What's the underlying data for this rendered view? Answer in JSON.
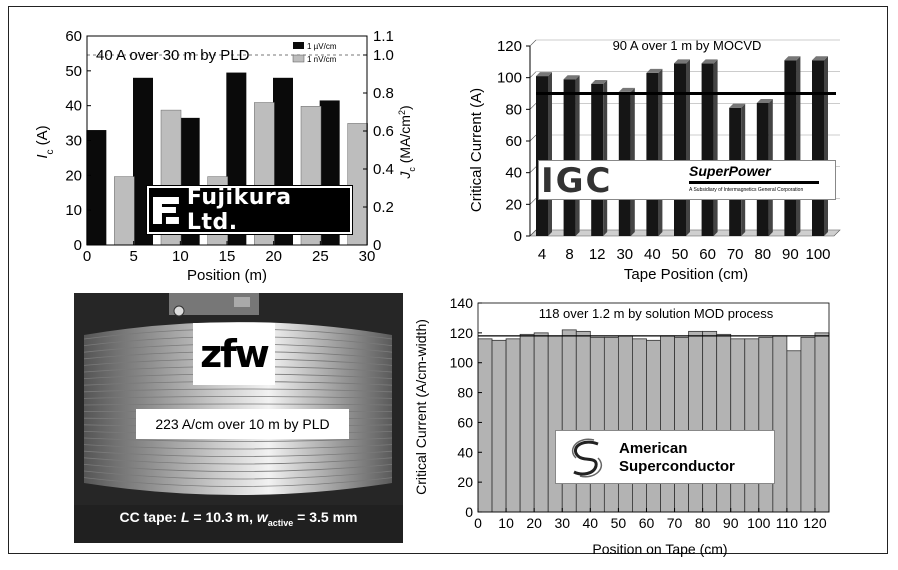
{
  "colors": {
    "black_bar": "#0a0a0a",
    "hatched_bar": "#bdbdbd",
    "gray_bar": "#b3b3b3",
    "photo_bg": "#2a2a2a",
    "fujikura_bg": "#000000",
    "superpower_bg": "#ffffff"
  },
  "logos": {
    "fujikura": "Fujikura Ltd.",
    "igc": "IGC",
    "superpower": "SuperPower",
    "superpower_sub": "A Subsidiary of Intermagnetics General Corporation",
    "zfw": "zfw",
    "amsc_line1": "American",
    "amsc_line2": "Superconductor"
  },
  "photo": {
    "annotation": "223 A/cm over 10 m by PLD",
    "caption_prefix": "CC tape: ",
    "caption_L": "L",
    "caption_L_value": " = 10.3 m, ",
    "caption_w": "w",
    "caption_w_sub": "active",
    "caption_w_value": " = 3.5 mm"
  },
  "chart_data": [
    {
      "type": "bar",
      "title": "40 A over 30 m by PLD",
      "xlabel": "Position (m)",
      "ylabel": "I",
      "ylabel_sub": "c",
      "ylabel_unit": " (A)",
      "y2label": "J",
      "y2label_sub": "c",
      "y2label_unit": " (MA/cm",
      "y2label_sup": "2",
      "y2label_close": ")",
      "xlim": [
        0,
        30
      ],
      "ylim": [
        0,
        60
      ],
      "y2lim": [
        0,
        1.1
      ],
      "x_ticks": [
        "0",
        "5",
        "10",
        "15",
        "20",
        "25",
        "30"
      ],
      "y_ticks": [
        "0",
        "10",
        "20",
        "30",
        "40",
        "50",
        "60"
      ],
      "y2_ticks": [
        "0",
        "0.2",
        "0.4",
        "0.6",
        "0.8",
        "1.0",
        "1.1"
      ],
      "legend_position": "top-right",
      "reference_line_y2": 1.0,
      "series": [
        {
          "name": "1 µV/cm",
          "axis": "left",
          "x": [
            1,
            6,
            11,
            16,
            21,
            26
          ],
          "values": [
            33,
            48,
            36.5,
            49.5,
            48,
            41.5
          ]
        },
        {
          "name": "1 nV/cm",
          "axis": "right",
          "x": [
            4,
            9,
            14,
            19,
            24,
            29
          ],
          "values": [
            0.36,
            0.71,
            0.36,
            0.75,
            0.73,
            0.64
          ]
        }
      ]
    },
    {
      "type": "bar",
      "title": "90 A over 1 m by MOCVD",
      "xlabel": "Tape Position (cm)",
      "ylabel": "Critical Current (A)",
      "ylim": [
        0,
        120
      ],
      "y_ticks": [
        "0",
        "20",
        "40",
        "60",
        "80",
        "100",
        "120"
      ],
      "categories": [
        "4",
        "8",
        "12",
        "30",
        "40",
        "50",
        "60",
        "70",
        "80",
        "90",
        "100"
      ],
      "values": [
        101,
        99,
        96,
        91,
        103,
        109,
        109,
        81,
        84,
        111,
        111
      ],
      "reference_line": 90
    },
    {
      "type": "bar",
      "title": "118 over 1.2 m by solution MOD process",
      "xlabel": "Position on Tape (cm)",
      "ylabel": "Critical Current (A/cm-width)",
      "ylim": [
        0,
        140
      ],
      "xlim": [
        0,
        125
      ],
      "y_ticks": [
        "0",
        "20",
        "40",
        "60",
        "80",
        "100",
        "120",
        "140"
      ],
      "x_ticks": [
        "0",
        "10",
        "20",
        "30",
        "40",
        "50",
        "60",
        "70",
        "80",
        "90",
        "100",
        "110",
        "120"
      ],
      "reference_line": 118,
      "values": [
        116,
        115,
        116,
        119,
        120,
        118,
        122,
        121,
        117,
        117,
        118,
        116,
        115,
        118,
        117,
        121,
        121,
        119,
        116,
        116,
        117,
        118,
        108,
        117,
        120
      ]
    }
  ]
}
